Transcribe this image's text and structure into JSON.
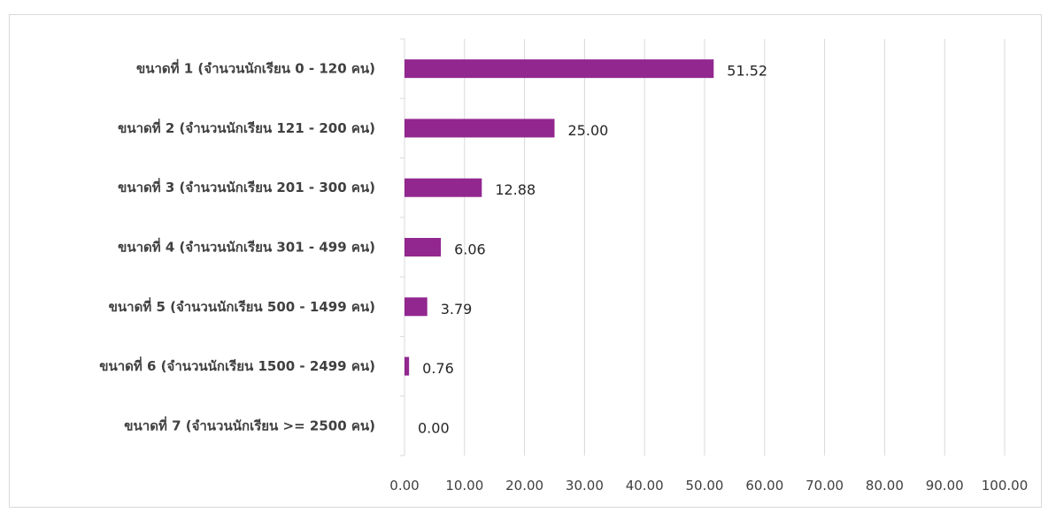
{
  "chart_data": {
    "type": "bar",
    "orientation": "horizontal",
    "categories": [
      "ขนาดที่ 1 (จำนวนนักเรียน 0 - 120 คน)",
      "ขนาดที่ 2 (จำนวนนักเรียน 121 - 200 คน)",
      "ขนาดที่ 3 (จำนวนนักเรียน 201 - 300 คน)",
      "ขนาดที่ 4 (จำนวนนักเรียน 301 - 499 คน)",
      "ขนาดที่ 5 (จำนวนนักเรียน 500 - 1499 คน)",
      "ขนาดที่ 6 (จำนวนนักเรียน 1500 - 2499 คน)",
      "ขนาดที่ 7 (จำนวนนักเรียน >= 2500 คน)"
    ],
    "values": [
      51.52,
      25.0,
      12.88,
      6.06,
      3.79,
      0.76,
      0.0
    ],
    "data_labels": [
      "51.52",
      "25.00",
      "12.88",
      "6.06",
      "3.79",
      "0.76",
      "0.00"
    ],
    "xlim": [
      0,
      100
    ],
    "x_ticks": [
      0,
      10,
      20,
      30,
      40,
      50,
      60,
      70,
      80,
      90,
      100
    ],
    "x_tick_labels": [
      "0.00",
      "10.00",
      "20.00",
      "30.00",
      "40.00",
      "50.00",
      "60.00",
      "70.00",
      "80.00",
      "90.00",
      "100.00"
    ],
    "title": "",
    "xlabel": "",
    "ylabel": "",
    "grid": "vertical",
    "legend": "none",
    "bar_color": "#92278f",
    "grid_color": "#d9d9d9"
  }
}
